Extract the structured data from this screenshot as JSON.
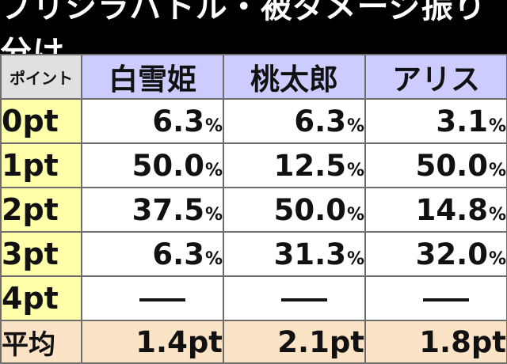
{
  "title": "プリシラバトル・被ダメージ振り分け",
  "header": {
    "corner": "ポイント",
    "columns": [
      "白雪姫",
      "桃太郎",
      "アリス"
    ]
  },
  "rows": [
    {
      "label": "0pt",
      "values": [
        {
          "num": "6.3",
          "unit": "%"
        },
        {
          "num": "6.3",
          "unit": "%"
        },
        {
          "num": "3.1",
          "unit": "%"
        }
      ]
    },
    {
      "label": "1pt",
      "values": [
        {
          "num": "50.0",
          "unit": "%"
        },
        {
          "num": "12.5",
          "unit": "%"
        },
        {
          "num": "50.0",
          "unit": "%"
        }
      ]
    },
    {
      "label": "2pt",
      "values": [
        {
          "num": "37.5",
          "unit": "%"
        },
        {
          "num": "50.0",
          "unit": "%"
        },
        {
          "num": "14.8",
          "unit": "%"
        }
      ]
    },
    {
      "label": "3pt",
      "values": [
        {
          "num": "6.3",
          "unit": "%"
        },
        {
          "num": "31.3",
          "unit": "%"
        },
        {
          "num": "32.0",
          "unit": "%"
        }
      ]
    },
    {
      "label": "4pt",
      "values": [
        {
          "dash": true
        },
        {
          "dash": true
        },
        {
          "dash": true
        }
      ]
    }
  ],
  "average": {
    "label": "平均",
    "values": [
      "1.4pt",
      "2.1pt",
      "1.8pt"
    ]
  },
  "colors": {
    "title_bg": "#000000",
    "header_bg": "#ccccff",
    "row_label_bg": "#ffffaa",
    "average_bg": "#fbe3c6",
    "corner_bg": "#e0e0e0"
  }
}
